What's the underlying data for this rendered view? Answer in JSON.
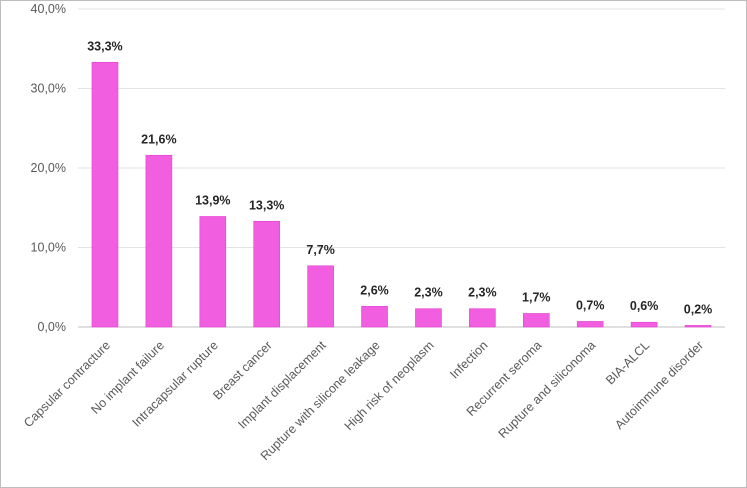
{
  "chart_data": {
    "type": "bar",
    "categories": [
      "Capsular contracture",
      "No implant failure",
      "Intracapsular rupture",
      "Breast cancer",
      "Implant displacement",
      "Rupture with silicone leakage",
      "High risk of neoplasm",
      "Infection",
      "Recurrent seroma",
      "Rupture and siliconoma",
      "BIA-ALCL",
      "Autoimmune disorder"
    ],
    "values": [
      33.3,
      21.6,
      13.9,
      13.3,
      7.7,
      2.6,
      2.3,
      2.3,
      1.7,
      0.7,
      0.6,
      0.2
    ],
    "data_labels": [
      "33,3%",
      "21,6%",
      "13,9%",
      "13,3%",
      "7,7%",
      "2,6%",
      "2,3%",
      "2,3%",
      "1,7%",
      "0,7%",
      "0,6%",
      "0,2%"
    ],
    "y_ticks": [
      0,
      10,
      20,
      30,
      40
    ],
    "y_tick_labels": [
      "0,0%",
      "10,0%",
      "20,0%",
      "30,0%",
      "40,0%"
    ],
    "ylim": [
      0,
      40
    ],
    "grid": true,
    "legend": "none",
    "bar_color": "#f25ee0",
    "bar_edge_color": "#e63fd2",
    "title": "",
    "xlabel": "",
    "ylabel": ""
  }
}
